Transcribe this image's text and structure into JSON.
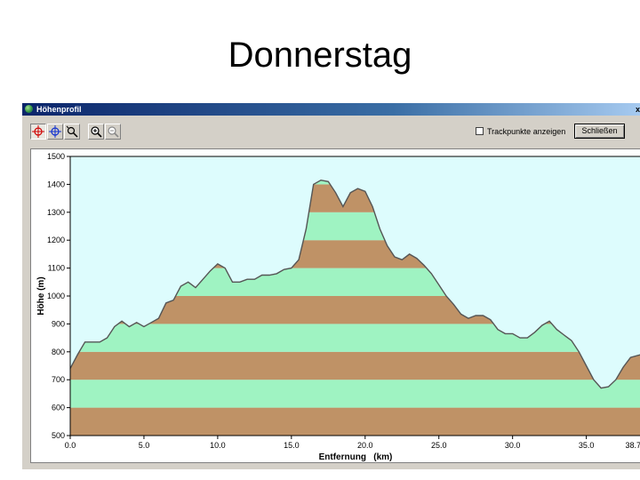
{
  "slide": {
    "title": "Donnerstag"
  },
  "window": {
    "title": "Höhenprofil",
    "corner_glyph": "x",
    "toolbar": {
      "tools": [
        "profile-cursor-red",
        "profile-cursor-blue",
        "zoom-tool",
        "zoom-in",
        "zoom-out"
      ],
      "checkbox_label": "Trackpunkte anzeigen",
      "checkbox_checked": false,
      "close_label": "Schließen"
    }
  },
  "colors": {
    "band_green": "#9ff3c2",
    "band_brown": "#bf9266",
    "sky": "#ddfcfd",
    "profile_line": "#555555"
  },
  "chart_data": {
    "type": "area",
    "xlabel": "Entfernung   (km)",
    "ylabel": "Höhe (m)",
    "xlim": [
      0,
      38.7
    ],
    "ylim": [
      500,
      1500
    ],
    "x_ticks": [
      "0.0",
      "5.0",
      "10.0",
      "15.0",
      "20.0",
      "25.0",
      "30.0",
      "35.0",
      "38.7"
    ],
    "y_ticks": [
      "500",
      "600",
      "700",
      "800",
      "900",
      "1000",
      "1100",
      "1200",
      "1300",
      "1400",
      "1500"
    ],
    "x": [
      0,
      0.5,
      1,
      2,
      2.5,
      3,
      3.5,
      4,
      4.5,
      5,
      5.5,
      6,
      6.5,
      7,
      7.5,
      8,
      8.5,
      9,
      9.5,
      10,
      10.5,
      11,
      11.5,
      12,
      12.5,
      13,
      13.5,
      14,
      14.5,
      15,
      15.5,
      16,
      16.5,
      17,
      17.5,
      18,
      18.5,
      19,
      19.5,
      20,
      20.5,
      21,
      21.5,
      22,
      22.5,
      23,
      23.5,
      24,
      24.5,
      25,
      25.5,
      26,
      26.5,
      27,
      27.5,
      28,
      28.5,
      29,
      29.5,
      30,
      30.5,
      31,
      31.5,
      32,
      32.5,
      33,
      33.5,
      34,
      34.5,
      35,
      35.5,
      36,
      36.5,
      37,
      37.5,
      38,
      38.7
    ],
    "y": [
      740,
      790,
      835,
      835,
      850,
      890,
      910,
      890,
      905,
      890,
      905,
      920,
      975,
      985,
      1035,
      1050,
      1030,
      1060,
      1090,
      1115,
      1100,
      1050,
      1050,
      1060,
      1060,
      1075,
      1075,
      1080,
      1095,
      1100,
      1130,
      1240,
      1400,
      1415,
      1410,
      1370,
      1320,
      1370,
      1385,
      1375,
      1320,
      1240,
      1180,
      1140,
      1130,
      1150,
      1135,
      1110,
      1080,
      1040,
      1000,
      970,
      935,
      920,
      930,
      930,
      915,
      880,
      865,
      865,
      850,
      850,
      870,
      895,
      910,
      880,
      860,
      840,
      800,
      750,
      700,
      670,
      675,
      700,
      745,
      780,
      790
    ]
  }
}
